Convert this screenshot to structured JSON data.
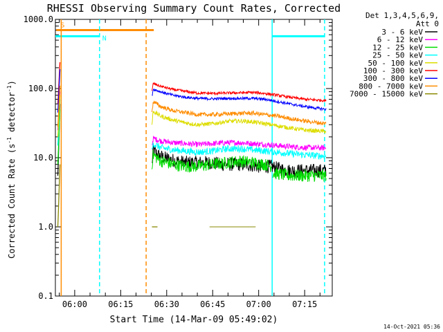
{
  "chart_data": {
    "type": "line",
    "title": "RHESSI Observing Summary Count Rates, Corrected",
    "xlabel": "Start Time (14-Mar-09 05:49:02)",
    "ylabel_main": "Corrected Count Rate (s",
    "ylabel_sup1": "-1",
    "ylabel_mid": " detector",
    "ylabel_sup2": "-1",
    "ylabel_end": ")",
    "y_scale": "log",
    "ylim": [
      0.1,
      1000
    ],
    "xlim_minutes": [
      -6.3,
      84
    ],
    "xticks": [
      {
        "label": "06:00",
        "minutes": 0
      },
      {
        "label": "06:15",
        "minutes": 15
      },
      {
        "label": "06:30",
        "minutes": 30
      },
      {
        "label": "06:45",
        "minutes": 45
      },
      {
        "label": "07:00",
        "minutes": 60
      },
      {
        "label": "07:15",
        "minutes": 75
      }
    ],
    "yticks": [
      {
        "label": "1000.0",
        "value": 1000
      },
      {
        "label": "100.0",
        "value": 100
      },
      {
        "label": "10.0",
        "value": 10
      },
      {
        "label": "1.0",
        "value": 1
      },
      {
        "label": "0.1",
        "value": 0.1
      }
    ],
    "legend": {
      "placement": "top-right",
      "header_line1": "Det 1,3,4,5,6,9,",
      "header_line2": "Att 0",
      "entries": [
        {
          "label": "3 - 6 keV",
          "color": "#000000"
        },
        {
          "label": "6 - 12 keV",
          "color": "#ff00ff"
        },
        {
          "label": "12 - 25 keV",
          "color": "#00dd00"
        },
        {
          "label": "25 - 50 keV",
          "color": "#00ffff"
        },
        {
          "label": "50 - 100 keV",
          "color": "#dddd00"
        },
        {
          "label": "100 - 300 keV",
          "color": "#ff0000"
        },
        {
          "label": "300 - 800 keV",
          "color": "#0000ff"
        },
        {
          "label": "800 - 7000 keV",
          "color": "#ff8c00"
        },
        {
          "label": "7000 - 15000 keV",
          "color": "#888800"
        }
      ]
    },
    "flags": [
      {
        "label": "S",
        "color": "#ff8c00",
        "start_minutes": -6,
        "end_minutes": 25.8,
        "level": 700
      },
      {
        "label": "N",
        "color": "#00ffff",
        "start_minutes": -6.3,
        "end_minutes": 8.1,
        "level": 570
      },
      {
        "label": "",
        "color": "#00ffff",
        "start_minutes": 64.4,
        "end_minutes": 81.5,
        "level": 570
      }
    ],
    "vertical_markers": [
      {
        "minutes": -4.4,
        "color": "#ff8c00",
        "style": "solid"
      },
      {
        "minutes": 8.1,
        "color": "#00ffff",
        "style": "dashed"
      },
      {
        "minutes": 23.3,
        "color": "#ff8c00",
        "style": "dashed"
      },
      {
        "minutes": 64.4,
        "color": "#00ffff",
        "style": "solid"
      },
      {
        "minutes": 81.5,
        "color": "#00ffff",
        "style": "dashed"
      }
    ],
    "series": [
      {
        "name": "3 - 6 keV",
        "color": "#000000",
        "noise": 0.1,
        "segments": [
          {
            "x": [
              -5.5,
              -4.8
            ],
            "y": [
              5.5,
              60
            ]
          },
          {
            "x": [
              25.2,
              25.6,
              27,
              29,
              33,
              36,
              40,
              44,
              48,
              52,
              56,
              60,
              64,
              66,
              70,
              74,
              78,
              82
            ],
            "y": [
              8,
              13,
              11,
              10,
              9,
              8.5,
              8.5,
              8.5,
              8,
              8,
              8,
              7.5,
              7.5,
              7,
              6.5,
              6.5,
              6.5,
              6.5
            ]
          }
        ]
      },
      {
        "name": "6 - 12 keV",
        "color": "#ff00ff",
        "noise": 0.04,
        "segments": [
          {
            "x": [
              -5.5,
              -4.8
            ],
            "y": [
              25,
              90
            ]
          },
          {
            "x": [
              25.2,
              25.6,
              28,
              32,
              36,
              40,
              45,
              50,
              54,
              58,
              62,
              66,
              70,
              75,
              82
            ],
            "y": [
              15,
              19,
              17.5,
              16.5,
              16,
              15.5,
              16,
              16.5,
              16.5,
              16,
              15.5,
              15,
              14.5,
              14,
              13.8
            ]
          }
        ]
      },
      {
        "name": "12 - 25 keV",
        "color": "#00dd00",
        "noise": 0.09,
        "segments": [
          {
            "x": [
              -5.5,
              -4.8
            ],
            "y": [
              8,
              50
            ]
          },
          {
            "x": [
              25.2,
              25.6,
              28,
              32,
              36,
              40,
              45,
              50,
              54,
              58,
              62,
              64.2
            ],
            "y": [
              8,
              11,
              9,
              8,
              7.5,
              7.5,
              8,
              8.5,
              9,
              8.5,
              8,
              7.5
            ]
          },
          {
            "x": [
              64.6,
              70,
              76,
              82
            ],
            "y": [
              6,
              5.5,
              5.5,
              5.5
            ]
          }
        ]
      },
      {
        "name": "25 - 50 keV",
        "color": "#00ffff",
        "noise": 0.05,
        "segments": [
          {
            "x": [
              -5.5,
              -4.8
            ],
            "y": [
              15,
              70
            ]
          },
          {
            "x": [
              25.2,
              25.6,
              28,
              32,
              36,
              40,
              45,
              50,
              54,
              58,
              62,
              66,
              70,
              75,
              82
            ],
            "y": [
              12,
              16,
              14,
              13,
              12.5,
              12,
              12.5,
              13.5,
              13.5,
              13,
              12.5,
              12,
              11.5,
              11,
              10.5
            ]
          }
        ]
      },
      {
        "name": "50 - 100 keV",
        "color": "#dddd00",
        "noise": 0.03,
        "segments": [
          {
            "x": [
              -5.5,
              -4.8
            ],
            "y": [
              20,
              80
            ]
          },
          {
            "x": [
              25.2,
              25.6,
              28,
              32,
              36,
              40,
              45,
              50,
              54,
              58,
              62,
              66,
              70,
              75,
              82
            ],
            "y": [
              30,
              47,
              40,
              35,
              32,
              30,
              31,
              33.5,
              34,
              33,
              31,
              29,
              27,
              25,
              24
            ]
          }
        ]
      },
      {
        "name": "100 - 300 keV",
        "color": "#ff0000",
        "noise": 0.02,
        "segments": [
          {
            "x": [
              -5.5,
              -4.8
            ],
            "y": [
              60,
              240
            ]
          },
          {
            "x": [
              25.2,
              25.6,
              28,
              32,
              36,
              40,
              45,
              50,
              55,
              58,
              62,
              66,
              70,
              75,
              82
            ],
            "y": [
              90,
              118,
              108,
              97,
              91,
              86,
              85,
              86,
              87,
              88,
              85,
              80,
              75,
              70,
              67
            ]
          }
        ]
      },
      {
        "name": "300 - 800 keV",
        "color": "#0000ff",
        "noise": 0.02,
        "segments": [
          {
            "x": [
              -5.5,
              -4.8
            ],
            "y": [
              45,
              190
            ]
          },
          {
            "x": [
              25.2,
              25.6,
              28,
              32,
              36,
              40,
              45,
              50,
              55,
              58,
              62,
              66,
              70,
              75,
              82
            ],
            "y": [
              78,
              98,
              90,
              80,
              75,
              72,
              71,
              72,
              72,
              72,
              70,
              65,
              60,
              55,
              50
            ]
          }
        ]
      },
      {
        "name": "800 - 7000 keV",
        "color": "#ff8c00",
        "noise": 0.03,
        "segments": [
          {
            "x": [
              -5.5,
              -4.8
            ],
            "y": [
              28,
              110
            ]
          },
          {
            "x": [
              25.2,
              25.6,
              28,
              32,
              36,
              40,
              45,
              50,
              55,
              58,
              62,
              66,
              70,
              75,
              82
            ],
            "y": [
              45,
              65,
              55,
              48,
              45,
              42,
              42,
              43,
              44,
              44,
              42,
              40,
              37,
              34,
              31
            ]
          }
        ]
      },
      {
        "name": "7000 - 15000 keV",
        "color": "#888800",
        "noise": 0.0,
        "segments": [
          {
            "x": [
              -5.5,
              -4.8
            ],
            "y": [
              1.0,
              8
            ]
          },
          {
            "x": [
              25.2,
              27
            ],
            "y": [
              1.0,
              1.0
            ]
          },
          {
            "x": [
              44,
              59
            ],
            "y": [
              1.0,
              1.0
            ]
          }
        ]
      }
    ]
  },
  "footer": {
    "timestamp": "14-Oct-2021 05:36"
  }
}
